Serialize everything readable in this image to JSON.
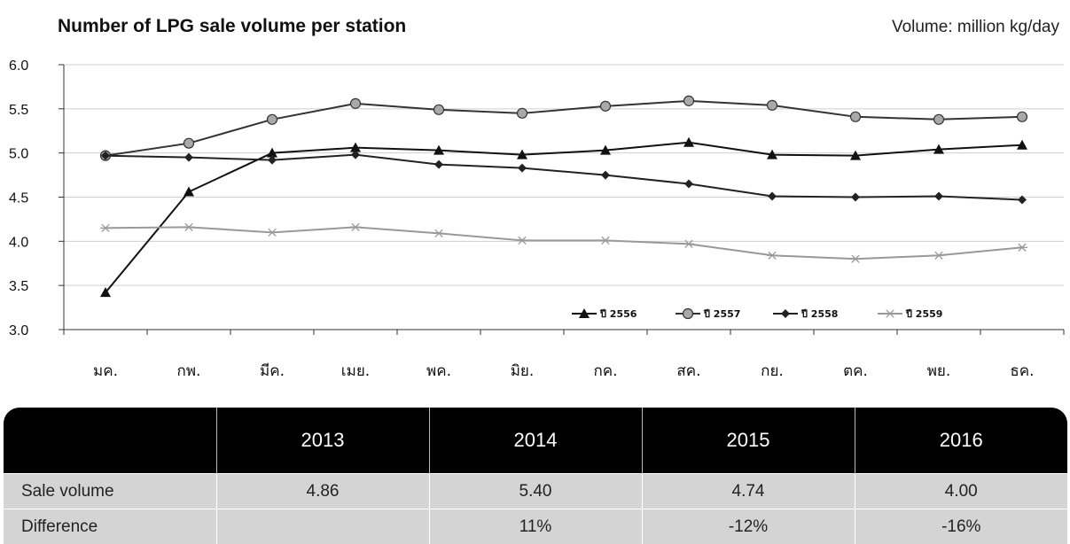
{
  "title": "Number of LPG sale volume per station",
  "unit": "Volume: million kg/day",
  "chart_data": {
    "type": "line",
    "categories": [
      "มค.",
      "กพ.",
      "มีค.",
      "เมย.",
      "พค.",
      "มิย.",
      "กค.",
      "สค.",
      "กย.",
      "ตค.",
      "พย.",
      "ธค."
    ],
    "ylim": [
      3.0,
      6.0
    ],
    "yticks": [
      "3.0",
      "3.5",
      "4.0",
      "4.5",
      "5.0",
      "5.5",
      "6.0"
    ],
    "grid": true,
    "legend_position": "bottom-right",
    "series": [
      {
        "name": "ปี 2556",
        "marker": "triangle",
        "color": "#111111",
        "values": [
          3.42,
          4.56,
          5.0,
          5.06,
          5.03,
          4.98,
          5.03,
          5.12,
          4.98,
          4.97,
          5.04,
          5.09
        ]
      },
      {
        "name": "ปี 2557",
        "marker": "circle",
        "color": "#333333",
        "marker_fill": "#a9a9a9",
        "values": [
          4.97,
          5.11,
          5.38,
          5.56,
          5.49,
          5.45,
          5.53,
          5.59,
          5.54,
          5.41,
          5.38,
          5.41
        ]
      },
      {
        "name": "ปี 2558",
        "marker": "diamond",
        "color": "#222222",
        "values": [
          4.97,
          4.95,
          4.92,
          4.98,
          4.87,
          4.83,
          4.75,
          4.65,
          4.51,
          4.5,
          4.51,
          4.47
        ]
      },
      {
        "name": "ปี 2559",
        "marker": "asterisk",
        "color": "#999999",
        "values": [
          4.15,
          4.16,
          4.1,
          4.16,
          4.09,
          4.01,
          4.01,
          3.97,
          3.84,
          3.8,
          3.84,
          3.93
        ]
      }
    ]
  },
  "table": {
    "headers": [
      "",
      "2013",
      "2014",
      "2015",
      "2016"
    ],
    "rows": [
      [
        "Sale volume",
        "4.86",
        "5.40",
        "4.74",
        "4.00"
      ],
      [
        "Difference",
        "",
        "11%",
        "-12%",
        "-16%"
      ]
    ]
  }
}
